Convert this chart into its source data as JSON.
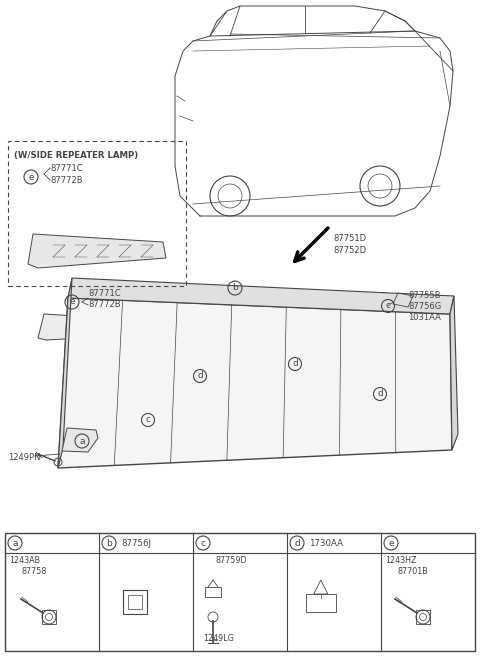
{
  "bg_color": "#ffffff",
  "line_color": "#444444",
  "fig_width": 4.8,
  "fig_height": 6.56,
  "dpi": 100,
  "labels": {
    "repeater_box_title": "(W/SIDE REPEATER LAMP)",
    "repeater_parts_1": "87771C",
    "repeater_parts_2": "87772B",
    "main_label1": "87771C",
    "main_label2": "87772B",
    "label_87751": "87751D",
    "label_87752": "87752D",
    "label_87755": "87755B",
    "label_87756g": "87756G",
    "label_1031aa": "1031AA",
    "label_1249pn": "1249PN",
    "part_a_code1": "1243AB",
    "part_a_code2": "87758",
    "part_b_code": "87756J",
    "part_c_code1": "87759D",
    "part_c_code2": "1249LG",
    "part_d_code": "1730AA",
    "part_e_code1": "1243HZ",
    "part_e_code2": "87701B",
    "circle_labels": [
      "a",
      "b",
      "c",
      "d",
      "e"
    ]
  }
}
